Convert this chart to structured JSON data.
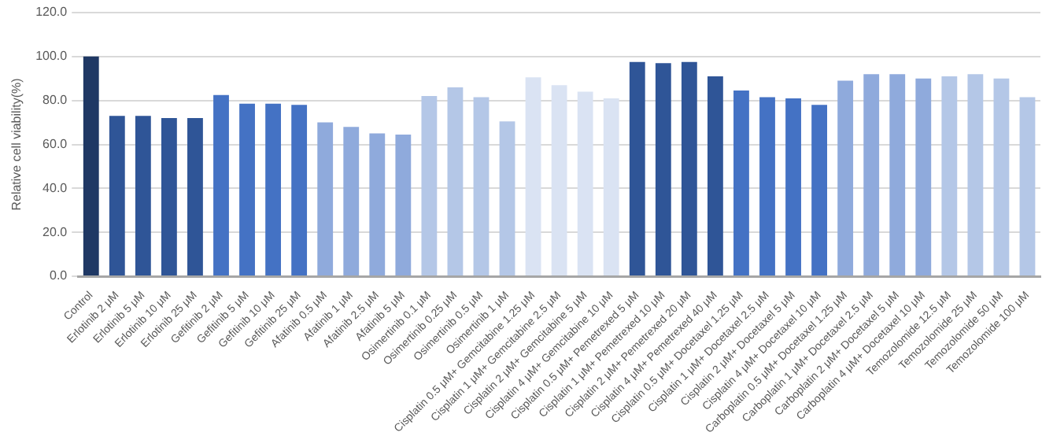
{
  "chart_data": {
    "type": "bar",
    "ylabel": "Relative cell viability(%)",
    "categories": [
      "Control",
      "Erlotinib 2 μM",
      "Erlotinib 5 μM",
      "Erlotinib 10 μM",
      "Erlotinib 25 μM",
      "Gefitinib 2 μM",
      "Gefitinib 5 μM",
      "Gefitinib 10 μM",
      "Gefitinib 25 μM",
      "Afatinib 0.5 μM",
      "Afatinib 1 μM",
      "Afatinib 2.5 μM",
      "Afatinib 5 μM",
      "Osimertinib 0.1 μM",
      "Osimertinib 0.25 μM",
      "Osimertinib 0.5 μM",
      "Osimertinib 1 μM",
      "Cisplatin 0.5 μM+ Gemcitabine 1.25 μM",
      "Cisplatin 1 μM+ Gemcitabine 2.5 μM",
      "Cisplatin 2 μM+ Gemcitabine 5 μM",
      "Cisplatin 4 μM+ Gemcitabine 10 μM",
      "Cisplatin 0.5 μM+ Pemetrexed 5 μM",
      "Cisplatin 1 μM+ Pemetrexed 10 μM",
      "Cisplatin 2 μM+ Pemetrexed 20 μM",
      "Cisplatin 4 μM+ Pemetrexed 40 μM",
      "Cisplatin 0.5 μM+ Docetaxel 1.25 μM",
      "Cisplatin 1 μM+ Docetaxel 2.5 μM",
      "Cisplatin 2 μM+ Docetaxel 5 μM",
      "Cisplatin 4 μM+ Docetaxel 10 μM",
      "Carboplatin 0.5 μM+ Docetaxel 1.25 μM",
      "Carboplatin 1 μM+ Docetaxel 2.5 μM",
      "Carboplatin 2 μM+ Docetaxel 5 μM",
      "Carboplatin 4 μM+ Docetaxel 10 μM",
      "Temozolomide 12.5 μM",
      "Temozolomide 25 μM",
      "Temozolomide 50 μM",
      "Temozolomide 100 μM"
    ],
    "values": [
      100,
      73,
      73,
      72,
      72,
      82.5,
      78.5,
      78.5,
      78,
      70,
      68,
      65,
      64.5,
      82,
      86,
      81.5,
      70.5,
      90.5,
      87,
      84,
      81,
      97.5,
      97,
      97.5,
      91,
      84.5,
      81.5,
      81,
      78,
      89,
      92,
      92,
      90,
      91,
      92,
      90,
      81.5
    ],
    "colors": [
      "#1f3864",
      "#2f5597",
      "#2f5597",
      "#2f5597",
      "#2f5597",
      "#4472c4",
      "#4472c4",
      "#4472c4",
      "#4472c4",
      "#8faadc",
      "#8faadc",
      "#8faadc",
      "#8faadc",
      "#b4c7e7",
      "#b4c7e7",
      "#b4c7e7",
      "#b4c7e7",
      "#dae3f3",
      "#dae3f3",
      "#dae3f3",
      "#dae3f3",
      "#2f5597",
      "#2f5597",
      "#2f5597",
      "#2f5597",
      "#4472c4",
      "#4472c4",
      "#4472c4",
      "#4472c4",
      "#8faadc",
      "#8faadc",
      "#8faadc",
      "#8faadc",
      "#b4c7e7",
      "#b4c7e7",
      "#b4c7e7",
      "#b4c7e7"
    ],
    "ylim": [
      0,
      120
    ],
    "yticks": [
      {
        "value": 0,
        "label": "0.0"
      },
      {
        "value": 20,
        "label": "20.0"
      },
      {
        "value": 40,
        "label": "40.0"
      },
      {
        "value": 60,
        "label": "60.0"
      },
      {
        "value": 80,
        "label": "80.0"
      },
      {
        "value": 100,
        "label": "100.0"
      },
      {
        "value": 120,
        "label": "120.0"
      }
    ],
    "grid": "y",
    "legend": false
  }
}
